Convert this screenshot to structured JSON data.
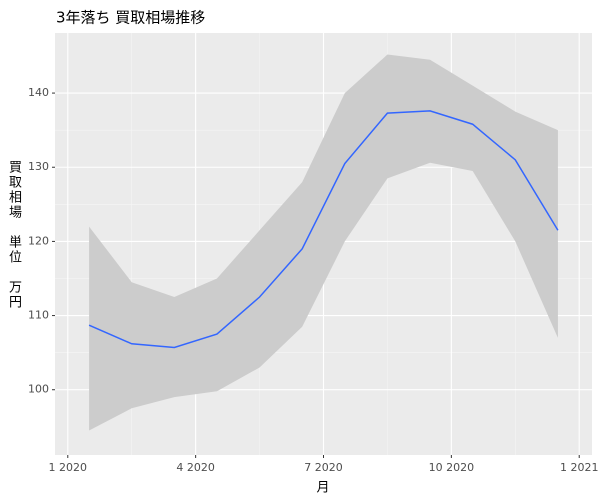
{
  "chart_data": {
    "type": "line",
    "title": "3年落ち 買取相場推移",
    "xlabel": "月",
    "ylabel": "買取相場　単位　万円",
    "x": [
      "2020-01",
      "2020-02",
      "2020-03",
      "2020-04",
      "2020-05",
      "2020-06",
      "2020-07",
      "2020-08",
      "2020-09",
      "2020-10",
      "2020-11",
      "2020-12"
    ],
    "values": [
      108.7,
      106.2,
      105.7,
      107.5,
      112.5,
      119,
      130.5,
      137.3,
      137.6,
      135.8,
      131,
      121.5
    ],
    "lower": [
      94.5,
      97.5,
      99,
      99.8,
      103,
      108.5,
      120,
      128.5,
      130.6,
      129.5,
      120,
      107
    ],
    "upper": [
      122,
      114.5,
      112.5,
      115,
      121.5,
      128,
      140,
      145.2,
      144.5,
      141,
      137.5,
      135
    ],
    "color": "#3366ff",
    "band_color": "#cccccc",
    "ylim": [
      91.2,
      148.1
    ],
    "yticks": [
      100,
      110,
      120,
      130,
      140
    ],
    "xlim": [
      "2020-01",
      "2021-01"
    ],
    "xticks": [
      {
        "value": "2020-01",
        "label": "1 2020"
      },
      {
        "value": "2020-04",
        "label": "4 2020"
      },
      {
        "value": "2020-07",
        "label": "7 2020"
      },
      {
        "value": "2020-10",
        "label": "10 2020"
      },
      {
        "value": "2021-01",
        "label": "1 2021"
      }
    ],
    "grid": true
  }
}
